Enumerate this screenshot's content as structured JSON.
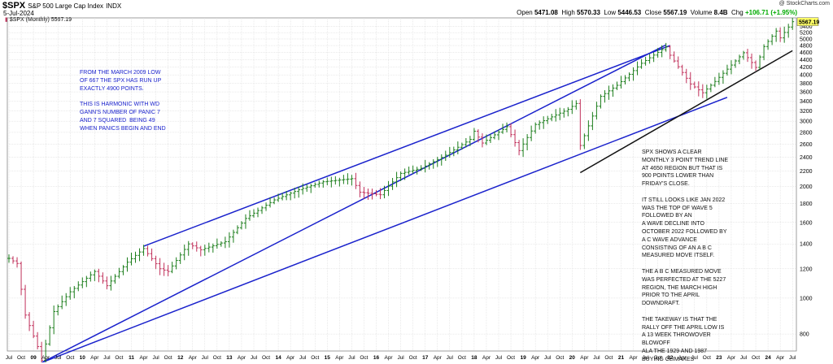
{
  "header": {
    "symbol": "$SPX",
    "name": "S&P 500 Large Cap Index",
    "exchange": "INDX",
    "date": "5-Jul-2024",
    "legend_text": "$SPX (Monthly) 5567.19",
    "brand": "@ StockCharts.com",
    "ohlc": {
      "open_label": "Open",
      "open": "5471.08",
      "high_label": "High",
      "high": "5570.33",
      "low_label": "Low",
      "low": "5446.53",
      "close_label": "Close",
      "close": "5567.19",
      "volume_label": "Volume",
      "volume": "8.4B",
      "chg_label": "Chg",
      "chg": "+106.71 (+1.95%)"
    }
  },
  "annotations": {
    "left_note": "FROM THE MARCH 2009 LOW\nOF 667 THE SPX HAS RUN UP\nEXACTLY 4900 POINTS.\n\nTHIS IS HARMONIC WITH WD\nGANN'S NUMBER OF PANIC 7\nAND 7 SQUARED  BEING 49\nWHEN PANICS BEGIN AND END",
    "right_note": "SPX SHOWS A CLEAR\nMONTHLY 3 POINT TREND LINE\nAT 4650 REGION BUT THAT IS\n900 POINTS LOWER THAN\nFRIDAY'S CLOSE.\n\nIT STILL LOOKS LIKE JAN 2022\nWAS THE TOP OF WAVE 5\nFOLLOWED BY AN\nA WAVE DECLINE INTO\nOCTOBER 2022 FOLLOWED BY\nA C WAVE ADVANCE\nCONSISTING OF AN A B C\nMEASURED MOVE ITSELF.\n\nTHE A B C MEASURED MOVE\nWAS PERFECTED AT THE 5227\nREGION, THE MARCH HIGH\nPRIOR TO THE APRIL\nDOWNDRAFT.\n\nTHE TAKEWAY IS THAT THE\nRALLY OFF THE APRIL LOW IS\nA 13 WEEK THROWOVER\nBLOWOFF\nALA THE 1929 AND 1987\nBUYING CLIMAXES"
  },
  "chart_data": {
    "type": "line",
    "scale": "log",
    "title": "$SPX S&P 500 Large Cap Index",
    "ylim": [
      720,
      5700
    ],
    "y_ticks": [
      800,
      1000,
      1200,
      1400,
      1600,
      1800,
      2000,
      2200,
      2400,
      2600,
      2800,
      3000,
      3200,
      3400,
      3600,
      3800,
      4000,
      4200,
      4400,
      4600,
      4800,
      5000,
      5200,
      5400
    ],
    "last_value_label": "5567.19",
    "x_tick_labels": [
      "Jul",
      "Oct",
      "09",
      "Apr",
      "Jul",
      "Oct",
      "10",
      "Apr",
      "Jul",
      "Oct",
      "11",
      "Apr",
      "Jul",
      "Oct",
      "12",
      "Apr",
      "Jul",
      "Oct",
      "13",
      "Apr",
      "Jul",
      "Oct",
      "14",
      "Apr",
      "Jul",
      "Oct",
      "15",
      "Apr",
      "Jul",
      "Oct",
      "16",
      "Apr",
      "Jul",
      "Oct",
      "17",
      "Apr",
      "Jul",
      "Oct",
      "18",
      "Apr",
      "Jul",
      "Oct",
      "19",
      "Apr",
      "Jul",
      "Oct",
      "20",
      "Apr",
      "Jul",
      "Oct",
      "21",
      "Apr",
      "Jul",
      "Oct",
      "22",
      "Apr",
      "Jul",
      "Oct",
      "23",
      "Apr",
      "Jul",
      "Oct",
      "24",
      "Apr",
      "Jul"
    ],
    "x_tick_start": "2008-07",
    "series": [
      {
        "values": [
          [
            "2008-07",
            1280
          ],
          [
            "2008-09",
            1240
          ],
          [
            "2008-11",
            900
          ],
          [
            "2009-02",
            740
          ],
          [
            "2009-03",
            680
          ],
          [
            "2009-06",
            920
          ],
          [
            "2009-10",
            1040
          ],
          [
            "2010-04",
            1180
          ],
          [
            "2010-07",
            1080
          ],
          [
            "2010-12",
            1250
          ],
          [
            "2011-04",
            1360
          ],
          [
            "2011-08",
            1200
          ],
          [
            "2011-10",
            1180
          ],
          [
            "2012-03",
            1400
          ],
          [
            "2012-06",
            1350
          ],
          [
            "2012-12",
            1420
          ],
          [
            "2013-05",
            1640
          ],
          [
            "2013-12",
            1840
          ],
          [
            "2014-06",
            1960
          ],
          [
            "2014-12",
            2060
          ],
          [
            "2015-07",
            2100
          ],
          [
            "2015-09",
            1930
          ],
          [
            "2016-02",
            1900
          ],
          [
            "2016-07",
            2170
          ],
          [
            "2016-12",
            2240
          ],
          [
            "2017-06",
            2430
          ],
          [
            "2017-12",
            2680
          ],
          [
            "2018-01",
            2820
          ],
          [
            "2018-03",
            2620
          ],
          [
            "2018-09",
            2900
          ],
          [
            "2018-12",
            2500
          ],
          [
            "2019-04",
            2940
          ],
          [
            "2019-12",
            3230
          ],
          [
            "2020-02",
            3350
          ],
          [
            "2020-03",
            2580
          ],
          [
            "2020-08",
            3500
          ],
          [
            "2020-12",
            3750
          ],
          [
            "2021-06",
            4300
          ],
          [
            "2021-12",
            4760
          ],
          [
            "2022-01",
            4520
          ],
          [
            "2022-06",
            3780
          ],
          [
            "2022-09",
            3580
          ],
          [
            "2022-12",
            3840
          ],
          [
            "2023-07",
            4590
          ],
          [
            "2023-10",
            4190
          ],
          [
            "2023-12",
            4770
          ],
          [
            "2024-03",
            5250
          ],
          [
            "2024-04",
            5035
          ],
          [
            "2024-07",
            5567
          ]
        ]
      }
    ],
    "trendlines": [
      {
        "color": "#1a22cc",
        "from": [
          "2009-03",
          670
        ],
        "to": [
          "2021-12",
          4820
        ]
      },
      {
        "color": "#1a22cc",
        "from": [
          "2011-04",
          1380
        ],
        "to": [
          "2022-01",
          4800
        ]
      },
      {
        "color": "#1a22cc",
        "from": [
          "2009-03",
          670
        ],
        "to": [
          "2023-03",
          3480
        ]
      },
      {
        "color": "#111111",
        "from": [
          "2020-03",
          2180
        ],
        "to": [
          "2024-07",
          4650
        ]
      }
    ],
    "colors": {
      "up": "#1b7d1b",
      "down": "#c0305a",
      "grid": "#d6d6d6",
      "last_tag": "#ffff66"
    }
  }
}
